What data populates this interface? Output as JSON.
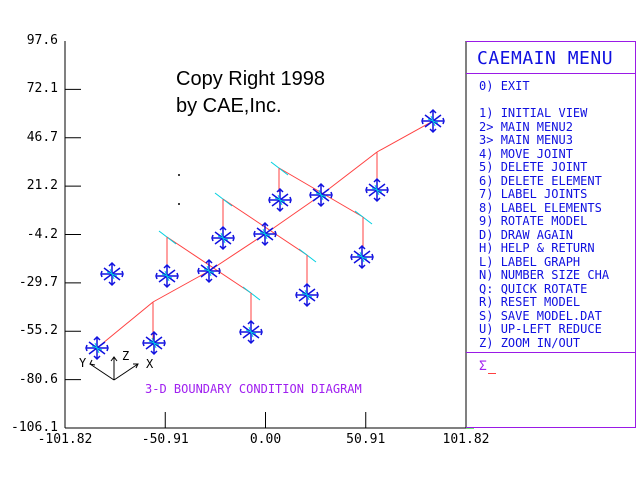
{
  "chart_data": {
    "type": "diagram",
    "title": "3-D BOUNDARY CONDITION DIAGRAM",
    "ylim": [
      -106.1,
      97.6
    ],
    "xlim": [
      -101.82,
      101.82
    ],
    "y_ticks": [
      "97.6",
      "72.1",
      "46.7",
      "21.2",
      "-4.2",
      "-29.7",
      "-55.2",
      "-80.6",
      "-106.1"
    ],
    "x_ticks": [
      "-101.82",
      "-50.91",
      "0.00",
      "50.91",
      "101.82"
    ]
  },
  "copyright": {
    "line1": "Copy Right 1998",
    "line2": "by CAE,Inc."
  },
  "axes_triad": {
    "x": "X",
    "y": "Y",
    "z": "Z"
  },
  "menu": {
    "title": "CAEMAIN MENU",
    "items": [
      {
        "key": "0)",
        "label": "EXIT"
      },
      {
        "key": "1)",
        "label": "INITIAL VIEW"
      },
      {
        "key": "2>",
        "label": "MAIN MENU2"
      },
      {
        "key": "3>",
        "label": "MAIN MENU3"
      },
      {
        "key": "4)",
        "label": "MOVE JOINT"
      },
      {
        "key": "5)",
        "label": "DELETE JOINT"
      },
      {
        "key": "6)",
        "label": "DELETE ELEMENT"
      },
      {
        "key": "7)",
        "label": "LABEL JOINTS"
      },
      {
        "key": "8)",
        "label": "LABEL ELEMENTS"
      },
      {
        "key": "9)",
        "label": "ROTATE MODEL"
      },
      {
        "key": "D)",
        "label": "DRAW AGAIN"
      },
      {
        "key": "H)",
        "label": "HELP & RETURN"
      },
      {
        "key": "L)",
        "label": "LABEL GRAPH"
      },
      {
        "key": "N)",
        "label": "NUMBER SIZE CHA"
      },
      {
        "key": "Q:",
        "label": "QUICK ROTATE"
      },
      {
        "key": "R)",
        "label": "RESET MODEL"
      },
      {
        "key": "S)",
        "label": "SAVE MODEL.DAT"
      },
      {
        "key": "U)",
        "label": "UP-LEFT REDUCE"
      },
      {
        "key": "Z)",
        "label": "ZOOM IN/OUT"
      }
    ],
    "prompt": "Σ"
  },
  "colors": {
    "menu_text": "#1010e0",
    "border": "#9a1ae6",
    "member": "#ff4040",
    "support": "#1010e0",
    "load": "#00d0e0"
  }
}
